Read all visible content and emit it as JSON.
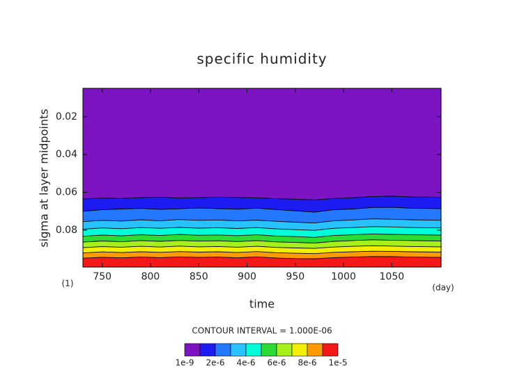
{
  "chart_data": {
    "type": "contour",
    "title": "specific humidity",
    "xlabel": "time",
    "ylabel": "sigma at layer midpoints",
    "xunit": "(day)",
    "yunit": "(1)",
    "contour_interval_label": "CONTOUR INTERVAL = 1.000E-06",
    "xlim": [
      730,
      1101
    ],
    "ylim": [
      0.005,
      0.0995
    ],
    "y_inverted": true,
    "xticks": [
      750,
      800,
      850,
      900,
      950,
      1000,
      1050
    ],
    "yticks": [
      0.02,
      0.04,
      0.06,
      0.08
    ],
    "x": [
      730,
      750,
      770,
      790,
      810,
      830,
      850,
      870,
      890,
      910,
      930,
      950,
      970,
      990,
      1010,
      1030,
      1050,
      1070,
      1101
    ],
    "contours": [
      {
        "values": [
          0.0635,
          0.063,
          0.0632,
          0.0628,
          0.0626,
          0.063,
          0.0628,
          0.0625,
          0.0627,
          0.0629,
          0.0633,
          0.0636,
          0.064,
          0.0632,
          0.0628,
          0.0622,
          0.062,
          0.0624,
          0.0626
        ]
      },
      {
        "values": [
          0.07,
          0.0692,
          0.0688,
          0.0685,
          0.069,
          0.0687,
          0.0683,
          0.0686,
          0.0689,
          0.0684,
          0.0691,
          0.0698,
          0.0705,
          0.0692,
          0.0688,
          0.068,
          0.0679,
          0.0684,
          0.0686
        ]
      },
      {
        "values": [
          0.0755,
          0.0748,
          0.0752,
          0.0745,
          0.075,
          0.0744,
          0.0748,
          0.0746,
          0.0751,
          0.0747,
          0.0753,
          0.0758,
          0.0762,
          0.075,
          0.0746,
          0.074,
          0.0742,
          0.0745,
          0.0748
        ]
      },
      {
        "values": [
          0.0795,
          0.0788,
          0.0792,
          0.0786,
          0.079,
          0.0785,
          0.0789,
          0.0787,
          0.0791,
          0.0786,
          0.0793,
          0.0797,
          0.0801,
          0.079,
          0.0786,
          0.0781,
          0.0783,
          0.0786,
          0.0788
        ]
      },
      {
        "values": [
          0.0832,
          0.0826,
          0.083,
          0.0824,
          0.0828,
          0.0822,
          0.0827,
          0.0825,
          0.0829,
          0.0824,
          0.0831,
          0.0834,
          0.0838,
          0.0828,
          0.0824,
          0.082,
          0.0822,
          0.0824,
          0.0826
        ]
      },
      {
        "values": [
          0.0863,
          0.0857,
          0.0861,
          0.0855,
          0.0859,
          0.0854,
          0.0858,
          0.0856,
          0.086,
          0.0855,
          0.0862,
          0.0865,
          0.0868,
          0.0859,
          0.0855,
          0.0851,
          0.0853,
          0.0855,
          0.0857
        ]
      },
      {
        "values": [
          0.0892,
          0.0887,
          0.089,
          0.0885,
          0.0889,
          0.0884,
          0.0888,
          0.0886,
          0.089,
          0.0885,
          0.0891,
          0.0894,
          0.0896,
          0.0889,
          0.0885,
          0.0882,
          0.0884,
          0.0886,
          0.0888
        ]
      },
      {
        "values": [
          0.092,
          0.0915,
          0.0918,
          0.0914,
          0.0917,
          0.0913,
          0.0916,
          0.0914,
          0.0918,
          0.0913,
          0.0919,
          0.0922,
          0.0924,
          0.0917,
          0.0914,
          0.0911,
          0.0912,
          0.0914,
          0.0916
        ]
      },
      {
        "values": [
          0.0948,
          0.0943,
          0.0946,
          0.0942,
          0.0945,
          0.0941,
          0.0944,
          0.0942,
          0.0946,
          0.0941,
          0.0947,
          0.095,
          0.0951,
          0.0945,
          0.0942,
          0.0939,
          0.094,
          0.0942,
          0.0944
        ]
      }
    ],
    "colorbar": {
      "levels": [
        1e-09,
        1e-06,
        2e-06,
        3e-06,
        4e-06,
        5e-06,
        6e-06,
        7e-06,
        8e-06,
        9e-06,
        1e-05
      ],
      "colors": [
        "#7d14c4",
        "#1c1cf2",
        "#2478ff",
        "#27c2ff",
        "#00ffd8",
        "#2cdc34",
        "#a8f01c",
        "#f2f000",
        "#ff9a00",
        "#f41818"
      ],
      "ticks": [
        {
          "value": 1e-09,
          "label": "1e-9"
        },
        {
          "value": 2e-06,
          "label": "2e-6"
        },
        {
          "value": 4e-06,
          "label": "4e-6"
        },
        {
          "value": 6e-06,
          "label": "6e-6"
        },
        {
          "value": 8e-06,
          "label": "8e-6"
        },
        {
          "value": 1e-05,
          "label": "1e-5"
        }
      ]
    }
  }
}
